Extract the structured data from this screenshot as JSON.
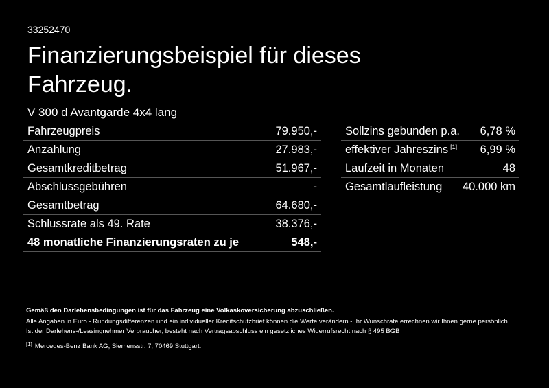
{
  "header": {
    "id": "33252470",
    "title": "Finanzierungsbeispiel für dieses Fahrzeug.",
    "model": "V 300 d Avantgarde 4x4 lang"
  },
  "left_table": {
    "rows": [
      {
        "label": "Fahrzeugpreis",
        "value": "79.950,-"
      },
      {
        "label": "Anzahlung",
        "value": "27.983,-"
      },
      {
        "label": "Gesamtkreditbetrag",
        "value": "51.967,-"
      },
      {
        "label": "Abschlussgebühren",
        "value": "-"
      },
      {
        "label": "Gesamtbetrag",
        "value": "64.680,-"
      },
      {
        "label": "Schlussrate als 49. Rate",
        "value": "38.376,-"
      },
      {
        "label": "48 monatliche Finanzierungsraten zu je",
        "value": "548,-"
      }
    ]
  },
  "right_table": {
    "rows": [
      {
        "label": "Sollzins gebunden p.a.",
        "value": "6,78 %"
      },
      {
        "label": "effektiver Jahreszins",
        "note": "[1]",
        "value": "6,99 %"
      },
      {
        "label": "Laufzeit in Monaten",
        "value": "48"
      },
      {
        "label": "Gesamtlaufleistung",
        "value": "40.000 km"
      }
    ]
  },
  "footer": {
    "notice": "Gemäß den Darlehensbedingungen ist für das Fahrzeug eine Volkaskoversicherung abzuschließen.",
    "lines": [
      "Alle Angaben in Euro - Rundungsdifferenzen und ein individueller Kreditschutzbrief können die Werte verändern - Ihr Wunschrate errechnen wir Ihnen gerne persönlich",
      "Ist der Darlehens-/Leasingnehmer Verbraucher, besteht nach Vertragsabschluss ein gesetzliches Widerrufsrecht nach § 495 BGB"
    ],
    "footnote": {
      "marker": "[1]",
      "text": "Mercedes-Benz Bank AG, Siemensstr. 7, 70469 Stuttgart."
    }
  }
}
